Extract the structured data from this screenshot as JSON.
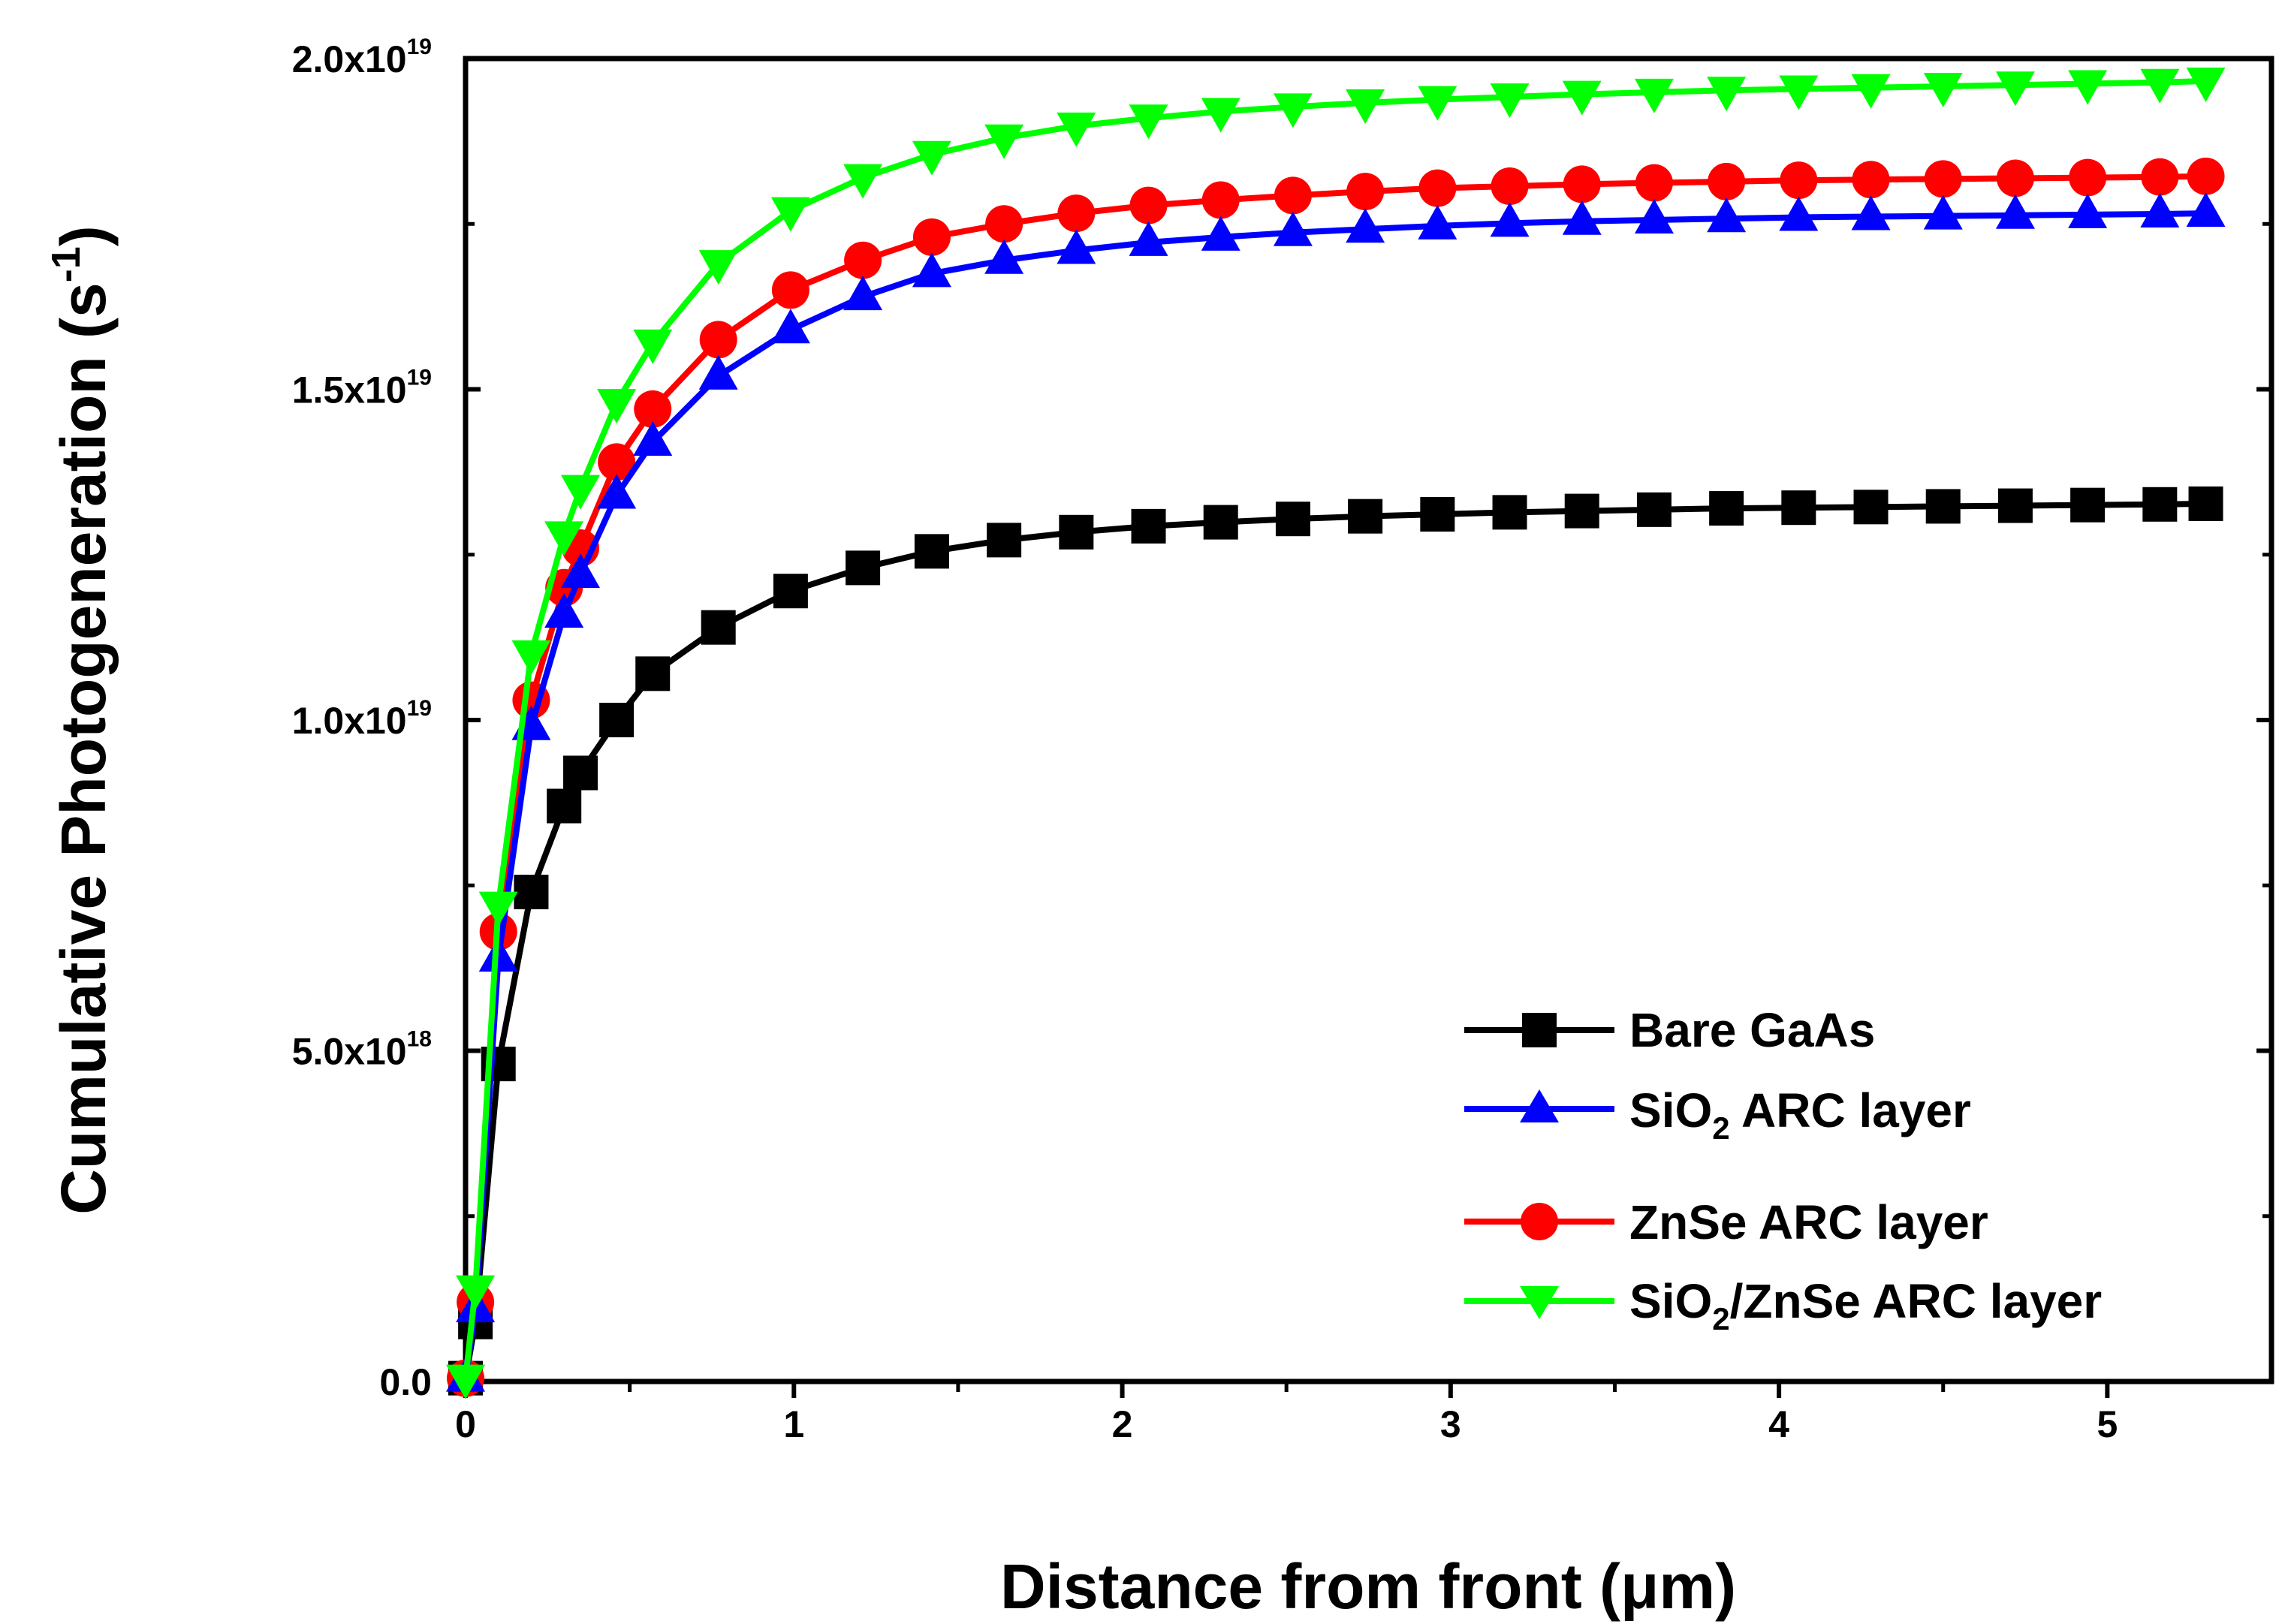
{
  "chart_data": {
    "type": "line",
    "title": "",
    "xlabel": "Distance from front (μm)",
    "ylabel": "Cumulative Photogeneration (s",
    "ylabel_sup": "-1",
    "ylabel_close": ")",
    "xlim": [
      0,
      5.5
    ],
    "ylim": [
      0,
      2e+19
    ],
    "grid": false,
    "legend_position": "bottom-right",
    "x_ticks": [
      {
        "value": 0,
        "label": "0"
      },
      {
        "value": 1,
        "label": "1"
      },
      {
        "value": 2,
        "label": "2"
      },
      {
        "value": 3,
        "label": "3"
      },
      {
        "value": 4,
        "label": "4"
      },
      {
        "value": 5,
        "label": "5"
      }
    ],
    "y_ticks": [
      {
        "value": 0,
        "mantissa": "0.0",
        "exp": ""
      },
      {
        "value": 5e+18,
        "mantissa": "5.0x10",
        "exp": "18"
      },
      {
        "value": 1e+19,
        "mantissa": "1.0x10",
        "exp": "19"
      },
      {
        "value": 1.5e+19,
        "mantissa": "1.5x10",
        "exp": "19"
      },
      {
        "value": 2e+19,
        "mantissa": "2.0x10",
        "exp": "19"
      }
    ],
    "x": [
      0.0,
      0.03,
      0.1,
      0.2,
      0.3,
      0.35,
      0.46,
      0.57,
      0.77,
      0.99,
      1.21,
      1.42,
      1.64,
      1.86,
      2.08,
      2.3,
      2.52,
      2.74,
      2.96,
      3.18,
      3.4,
      3.62,
      3.84,
      4.06,
      4.28,
      4.5,
      4.72,
      4.94,
      5.16,
      5.3
    ],
    "series": [
      {
        "name": "Bare GaAs",
        "legend_main": "Bare GaAs",
        "legend_sub": "",
        "legend_rest": "",
        "color": "#000000",
        "marker": "square",
        "values": [
          5e+16,
          9e+17,
          4.8e+18,
          7.4e+18,
          8.7e+18,
          9.2e+18,
          1e+19,
          1.07e+19,
          1.14e+19,
          1.195e+19,
          1.23e+19,
          1.255e+19,
          1.272e+19,
          1.284e+19,
          1.293e+19,
          1.299e+19,
          1.304e+19,
          1.308e+19,
          1.311e+19,
          1.314e+19,
          1.316e+19,
          1.318e+19,
          1.32e+19,
          1.321e+19,
          1.322e+19,
          1.323e+19,
          1.324e+19,
          1.325e+19,
          1.326e+19,
          1.327e+19
        ]
      },
      {
        "name": "SiO2 ARC layer",
        "legend_main": "SiO",
        "legend_sub": "2",
        "legend_rest": " ARC layer",
        "color": "#0000ff",
        "marker": "triangle-up",
        "values": [
          5e+16,
          1.1e+18,
          6.4e+18,
          9.9e+18,
          1.16e+19,
          1.22e+19,
          1.34e+19,
          1.42e+19,
          1.52e+19,
          1.59e+19,
          1.64e+19,
          1.675e+19,
          1.695e+19,
          1.71e+19,
          1.722e+19,
          1.73e+19,
          1.737e+19,
          1.742e+19,
          1.747e+19,
          1.751e+19,
          1.754e+19,
          1.756e+19,
          1.758e+19,
          1.76e+19,
          1.761e+19,
          1.762e+19,
          1.763e+19,
          1.764e+19,
          1.765e+19,
          1.766e+19
        ]
      },
      {
        "name": "ZnSe ARC layer",
        "legend_main": "ZnSe ARC layer",
        "legend_sub": "",
        "legend_rest": "",
        "color": "#ff0000",
        "marker": "circle",
        "values": [
          5e+16,
          1.2e+18,
          6.8e+18,
          1.03e+19,
          1.2e+19,
          1.26e+19,
          1.39e+19,
          1.47e+19,
          1.575e+19,
          1.65e+19,
          1.695e+19,
          1.73e+19,
          1.75e+19,
          1.766e+19,
          1.778e+19,
          1.786e+19,
          1.793e+19,
          1.799e+19,
          1.804e+19,
          1.807e+19,
          1.81e+19,
          1.812e+19,
          1.814e+19,
          1.816e+19,
          1.817e+19,
          1.818e+19,
          1.819e+19,
          1.82e+19,
          1.821e+19,
          1.822e+19
        ]
      },
      {
        "name": "SiO2/ZnSe ARC layer",
        "legend_main": "SiO",
        "legend_sub": "2",
        "legend_rest": "/ZnSe ARC layer",
        "color": "#00ff00",
        "marker": "triangle-down",
        "values": [
          5e+16,
          1.4e+18,
          7.2e+18,
          1.1e+19,
          1.28e+19,
          1.35e+19,
          1.48e+19,
          1.57e+19,
          1.69e+19,
          1.77e+19,
          1.82e+19,
          1.855e+19,
          1.88e+19,
          1.898e+19,
          1.91e+19,
          1.92e+19,
          1.927e+19,
          1.933e+19,
          1.938e+19,
          1.942e+19,
          1.946e+19,
          1.949e+19,
          1.952e+19,
          1.954e+19,
          1.956e+19,
          1.958e+19,
          1.96e+19,
          1.962e+19,
          1.964e+19,
          1.966e+19
        ]
      }
    ]
  }
}
